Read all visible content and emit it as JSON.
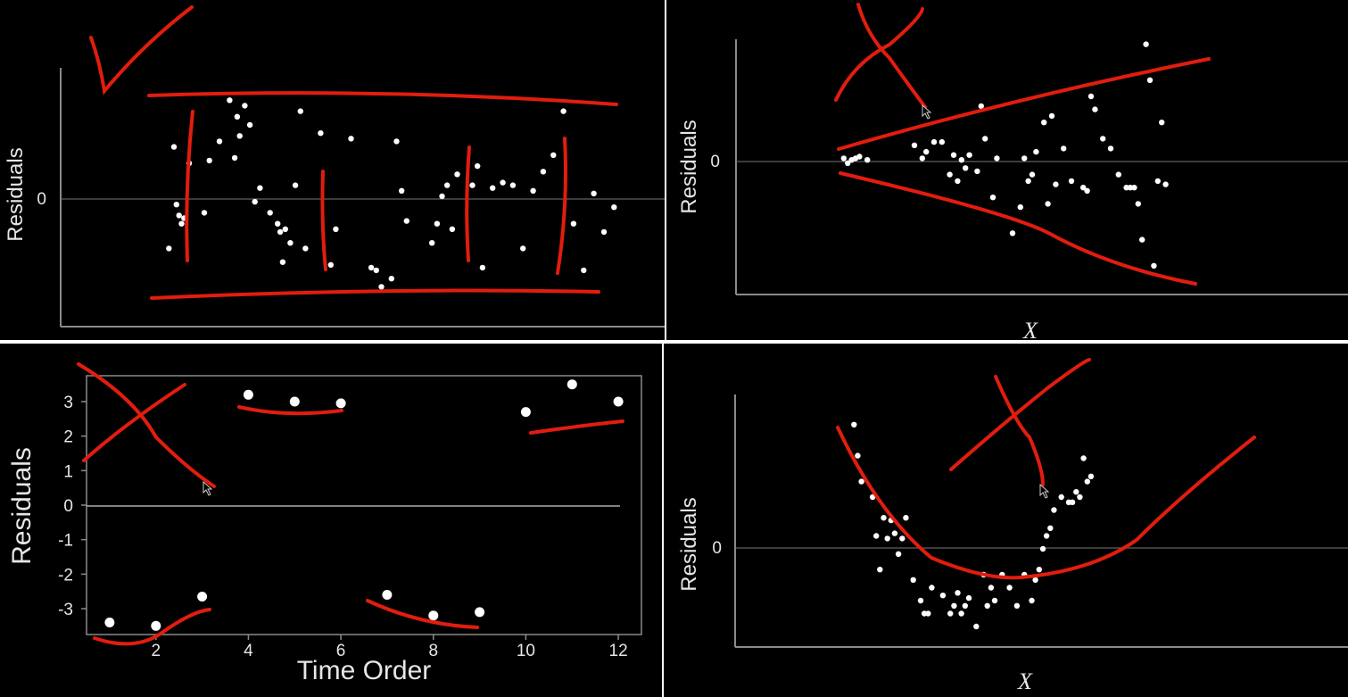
{
  "colors": {
    "background": "#000000",
    "points": "#ffffff",
    "ink": "#e21d0e",
    "axis": "#8a8a8a",
    "zero_line": "#777777",
    "text": "#e6e6e6"
  },
  "panels": [
    {
      "id": "top-left",
      "ylabel": "Residuals",
      "xlabel": "",
      "zero_tick": "0",
      "verdict": "check"
    },
    {
      "id": "top-right",
      "ylabel": "Residuals",
      "xlabel": "X",
      "zero_tick": "0",
      "verdict": "cross"
    },
    {
      "id": "bottom-left",
      "ylabel": "Residuals",
      "xlabel": "Time Order",
      "zero_tick": "0",
      "verdict": "cross"
    },
    {
      "id": "bottom-right",
      "ylabel": "Residuals",
      "xlabel": "X",
      "zero_tick": "0",
      "verdict": "cross"
    }
  ],
  "chart_data": [
    {
      "type": "scatter",
      "title": "",
      "xlabel": "",
      "ylabel": "Residuals",
      "y_ticks": [
        "0"
      ],
      "xlim": [
        0,
        100
      ],
      "ylim": [
        -4,
        4
      ],
      "grid": false,
      "zero_line": true,
      "x": [
        2,
        3,
        3.5,
        4,
        4.5,
        5,
        6,
        9,
        10,
        12,
        14,
        15,
        15.5,
        16,
        17,
        18,
        19,
        20,
        22,
        23.5,
        24,
        24.5,
        25,
        26,
        27,
        28,
        29,
        32,
        34,
        35,
        38,
        42,
        43,
        44,
        46,
        47,
        48,
        49,
        54,
        55,
        56,
        57,
        58,
        59,
        62,
        63,
        64,
        66,
        68,
        70,
        72,
        74,
        76,
        78,
        80,
        82,
        84,
        86,
        88,
        90
      ],
      "y": [
        -1.8,
        1.9,
        -0.2,
        -0.6,
        -0.9,
        -0.7,
        1.3,
        -0.5,
        1.4,
        2.1,
        3.6,
        1.5,
        3.0,
        2.3,
        3.4,
        2.7,
        -0.1,
        0.4,
        -0.5,
        -0.9,
        -1.2,
        -2.3,
        -1.1,
        -1.6,
        0.5,
        3.2,
        -1.8,
        2.4,
        -2.4,
        -1.1,
        2.2,
        -2.5,
        -2.6,
        -3.2,
        -2.9,
        2.1,
        0.3,
        -0.8,
        -1.6,
        -0.9,
        0.1,
        0.5,
        -1.1,
        0.9,
        0.5,
        1.2,
        -2.5,
        0.4,
        0.6,
        0.5,
        -1.8,
        0.3,
        1.0,
        1.6,
        3.2,
        -0.9,
        -2.6,
        0.2,
        -1.2,
        -0.3
      ]
    },
    {
      "type": "scatter",
      "title": "",
      "xlabel": "X",
      "ylabel": "Residuals",
      "y_ticks": [
        "0"
      ],
      "xlim": [
        0,
        100
      ],
      "ylim": [
        -4,
        4
      ],
      "grid": false,
      "zero_line": true,
      "x": [
        2,
        3,
        4,
        5,
        6,
        8,
        20,
        22,
        23,
        25,
        27,
        29,
        30,
        31,
        32,
        33,
        34,
        36,
        37,
        38,
        40,
        41,
        45,
        47,
        48,
        49,
        50,
        51,
        53,
        54,
        55,
        56,
        58,
        60,
        63,
        64,
        65,
        66,
        68,
        70,
        72,
        74,
        75,
        76,
        77,
        78,
        79,
        80,
        81,
        82,
        83,
        84
      ],
      "y": [
        0.1,
        -0.05,
        0.05,
        0.1,
        0.15,
        0.05,
        0.5,
        0.1,
        0.3,
        0.6,
        0.6,
        -0.4,
        0.2,
        -0.6,
        0.05,
        -0.2,
        0.2,
        -0.3,
        1.7,
        0.7,
        -1.1,
        0.1,
        -2.2,
        -1.4,
        0.1,
        -0.6,
        -0.4,
        0.3,
        1.2,
        -1.3,
        1.4,
        -0.7,
        0.4,
        -0.6,
        -0.8,
        -0.9,
        2.0,
        1.6,
        0.7,
        0.4,
        -0.4,
        -0.8,
        -0.8,
        -0.8,
        -1.3,
        -2.4,
        3.6,
        2.5,
        -3.2,
        -0.6,
        1.2,
        -0.7
      ]
    },
    {
      "type": "scatter",
      "title": "",
      "xlabel": "Time Order",
      "ylabel": "Residuals",
      "x_ticks": [
        "2",
        "4",
        "6",
        "8",
        "10",
        "12"
      ],
      "y_ticks": [
        "3",
        "2",
        "1",
        "0",
        "-1",
        "-2",
        "-3"
      ],
      "xlim": [
        0.5,
        12.5
      ],
      "ylim": [
        -3.75,
        3.75
      ],
      "grid": false,
      "zero_line": true,
      "x": [
        1,
        2,
        3,
        4,
        5,
        6,
        7,
        8,
        9,
        10,
        11,
        12
      ],
      "y": [
        -3.4,
        -3.5,
        -2.65,
        3.2,
        3.0,
        2.95,
        -2.6,
        -3.2,
        -3.1,
        2.7,
        3.5,
        3.0
      ]
    },
    {
      "type": "scatter",
      "title": "",
      "xlabel": "X",
      "ylabel": "Residuals",
      "y_ticks": [
        "0"
      ],
      "xlim": [
        0,
        100
      ],
      "ylim": [
        -4,
        6
      ],
      "grid": false,
      "zero_line": true,
      "x": [
        2,
        3,
        4,
        7,
        8,
        9,
        10,
        11,
        12,
        13,
        14,
        15,
        16,
        18,
        20,
        21,
        22,
        23,
        26,
        28,
        29,
        30,
        31,
        32,
        33,
        35,
        37,
        38,
        39,
        40,
        42,
        44,
        46,
        48,
        50,
        51,
        52,
        53,
        54,
        55,
        56,
        58,
        60,
        61,
        62,
        63,
        64,
        65,
        66
      ],
      "y": [
        4.8,
        3.6,
        2.6,
        2.0,
        0.5,
        -0.8,
        1.2,
        0.4,
        1.1,
        0.6,
        -0.2,
        0.4,
        1.2,
        -1.2,
        -2.0,
        -2.5,
        -2.5,
        -1.5,
        -1.8,
        -2.5,
        -2.2,
        -1.7,
        -2.5,
        -2.2,
        -1.9,
        -3.0,
        -1.0,
        -2.2,
        -1.5,
        -2.0,
        -1.0,
        -1.5,
        -2.2,
        -1.0,
        -2.0,
        -1.2,
        -0.8,
        0.0,
        0.5,
        0.8,
        1.5,
        2.0,
        1.8,
        1.8,
        2.2,
        2.0,
        3.5,
        2.6,
        2.8
      ]
    }
  ]
}
